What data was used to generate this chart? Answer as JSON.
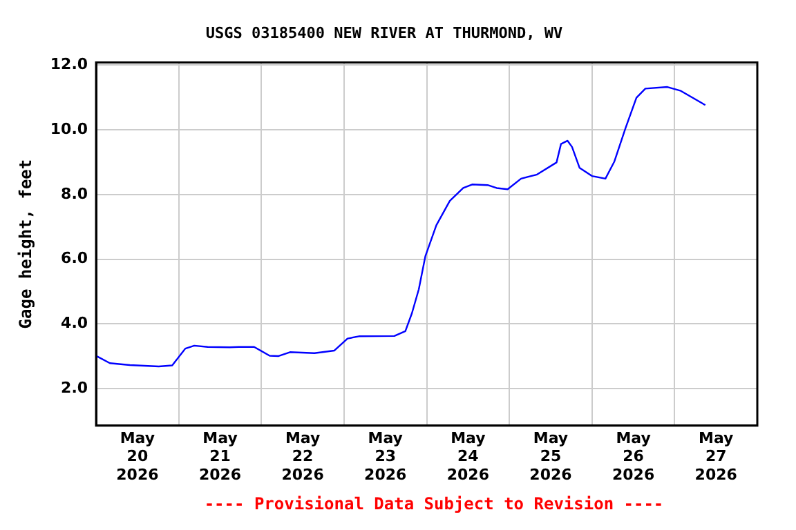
{
  "chart_data": {
    "type": "line",
    "title": "USGS 03185400 NEW RIVER AT THURMOND, WV",
    "ylabel": "Gage height, feet",
    "annotations": [
      "---- Provisional Data Subject to Revision ----"
    ],
    "x": [
      "2026-05-20T00:06",
      "2026-05-20T04:00",
      "2026-05-20T09:48",
      "2026-05-20T18:12",
      "2026-05-20T22:06",
      "2026-05-21T01:54",
      "2026-05-21T04:30",
      "2026-05-21T08:24",
      "2026-05-21T14:48",
      "2026-05-21T17:24",
      "2026-05-21T21:54",
      "2026-05-22T02:24",
      "2026-05-22T05:00",
      "2026-05-22T08:18",
      "2026-05-22T15:24",
      "2026-05-22T21:12",
      "2026-05-23T01:00",
      "2026-05-23T04:18",
      "2026-05-23T14:36",
      "2026-05-23T17:48",
      "2026-05-23T19:42",
      "2026-05-23T21:42",
      "2026-05-23T23:36",
      "2026-05-24T02:48",
      "2026-05-24T06:42",
      "2026-05-24T10:36",
      "2026-05-24T13:12",
      "2026-05-24T17:42",
      "2026-05-24T20:18",
      "2026-05-24T23:30",
      "2026-05-25T03:24",
      "2026-05-25T07:54",
      "2026-05-25T13:42",
      "2026-05-25T15:00",
      "2026-05-25T16:54",
      "2026-05-25T18:12",
      "2026-05-25T20:24",
      "2026-05-26T00:00",
      "2026-05-26T03:54",
      "2026-05-26T06:30",
      "2026-05-26T09:42",
      "2026-05-26T12:54",
      "2026-05-26T15:30",
      "2026-05-26T21:54",
      "2026-05-27T01:48",
      "2026-05-27T08:54"
    ],
    "series": [
      {
        "color": "#0000ff",
        "values": [
          3.01,
          2.79,
          2.73,
          2.69,
          2.72,
          3.24,
          3.33,
          3.29,
          3.28,
          3.29,
          3.29,
          3.02,
          3.01,
          3.13,
          3.1,
          3.18,
          3.55,
          3.62,
          3.63,
          3.78,
          4.33,
          5.07,
          6.09,
          7.05,
          7.8,
          8.2,
          8.31,
          8.29,
          8.2,
          8.16,
          8.49,
          8.61,
          8.99,
          9.56,
          9.66,
          9.47,
          8.82,
          8.57,
          8.49,
          9.02,
          10.04,
          10.99,
          11.27,
          11.32,
          11.2,
          10.76
        ]
      }
    ],
    "xlim": [
      "2026-05-20T00:00",
      "2026-05-28T00:00"
    ],
    "xticks": [
      {
        "value": "2026-05-20T12:00",
        "label": "May 20 2026"
      },
      {
        "value": "2026-05-21T00:00",
        "label": null
      },
      {
        "value": "2026-05-21T12:00",
        "label": "May 21 2026"
      },
      {
        "value": "2026-05-22T00:00",
        "label": null
      },
      {
        "value": "2026-05-22T12:00",
        "label": "May 22 2026"
      },
      {
        "value": "2026-05-23T00:00",
        "label": null
      },
      {
        "value": "2026-05-23T12:00",
        "label": "May 23 2026"
      },
      {
        "value": "2026-05-24T00:00",
        "label": null
      },
      {
        "value": "2026-05-24T12:00",
        "label": "May 24 2026"
      },
      {
        "value": "2026-05-25T00:00",
        "label": null
      },
      {
        "value": "2026-05-25T12:00",
        "label": "May 25 2026"
      },
      {
        "value": "2026-05-26T00:00",
        "label": null
      },
      {
        "value": "2026-05-26T12:00",
        "label": "May 26 2026"
      },
      {
        "value": "2026-05-27T00:00",
        "label": null
      },
      {
        "value": "2026-05-27T12:00",
        "label": "May 27 2026"
      }
    ],
    "ylim": [
      0.86,
      12.08
    ],
    "yticks": [
      {
        "value": 2,
        "label": "2.0"
      },
      {
        "value": 4,
        "label": "4.0"
      },
      {
        "value": 6,
        "label": "6.0"
      },
      {
        "value": 8,
        "label": "8.0"
      },
      {
        "value": 10,
        "label": "10.0"
      },
      {
        "value": 12,
        "label": "12.0"
      }
    ],
    "grid": true,
    "legend": false,
    "marker": "none",
    "line_style": "solid"
  }
}
